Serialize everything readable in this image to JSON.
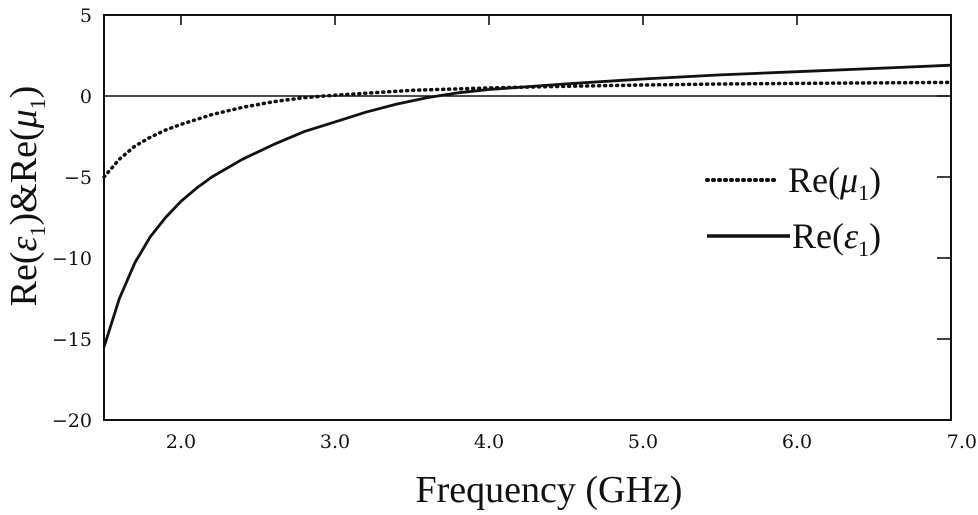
{
  "chart_data": {
    "type": "line",
    "title": "",
    "xlabel": "Frequency (GHz)",
    "ylabel": "Re(ε1)&Re(μ1)",
    "ylabel_parts": {
      "re1": "Re(",
      "eps": "ε",
      "sub1": "1",
      "mid": ")&Re(",
      "mu": "μ",
      "sub2": "1",
      "end": ")"
    },
    "xlim": [
      1.5,
      7.0
    ],
    "ylim": [
      -20,
      5
    ],
    "x_ticks": [
      2.0,
      3.0,
      4.0,
      5.0,
      6.0,
      7.0
    ],
    "x_tick_labels": [
      "2.0",
      "3.0",
      "4.0",
      "5.0",
      "6.0",
      "7.0"
    ],
    "y_ticks": [
      5,
      0,
      -5,
      -10,
      -15,
      -20
    ],
    "y_tick_labels": [
      "5",
      "0",
      "−5",
      "−10",
      "−15",
      "−20"
    ],
    "grid": false,
    "zero_line": true,
    "legend_placement": "right",
    "series": [
      {
        "name": "Re(μ1)",
        "label_parts": {
          "pre": "Re(",
          "sym": "μ",
          "sub": "1",
          "post": ")"
        },
        "style": "dotted",
        "x": [
          1.5,
          1.6,
          1.7,
          1.8,
          1.9,
          2.0,
          2.2,
          2.4,
          2.6,
          2.8,
          3.0,
          3.5,
          4.0,
          4.5,
          5.0,
          5.5,
          6.0,
          6.5,
          7.0
        ],
        "y": [
          -5.0,
          -3.9,
          -3.1,
          -2.55,
          -2.1,
          -1.75,
          -1.15,
          -0.7,
          -0.35,
          -0.1,
          0.05,
          0.35,
          0.5,
          0.6,
          0.68,
          0.74,
          0.78,
          0.81,
          0.84
        ]
      },
      {
        "name": "Re(ε1)",
        "label_parts": {
          "pre": "Re(",
          "sym": "ε",
          "sub": "1",
          "post": ")"
        },
        "style": "solid",
        "x": [
          1.5,
          1.6,
          1.7,
          1.8,
          1.9,
          2.0,
          2.1,
          2.2,
          2.4,
          2.6,
          2.8,
          3.0,
          3.2,
          3.4,
          3.6,
          3.8,
          4.0,
          4.5,
          5.0,
          5.5,
          6.0,
          6.5,
          7.0
        ],
        "y": [
          -15.5,
          -12.5,
          -10.3,
          -8.7,
          -7.5,
          -6.5,
          -5.7,
          -5.0,
          -3.9,
          -3.0,
          -2.2,
          -1.6,
          -1.0,
          -0.5,
          -0.1,
          0.2,
          0.4,
          0.75,
          1.05,
          1.3,
          1.5,
          1.7,
          1.9
        ]
      }
    ]
  }
}
